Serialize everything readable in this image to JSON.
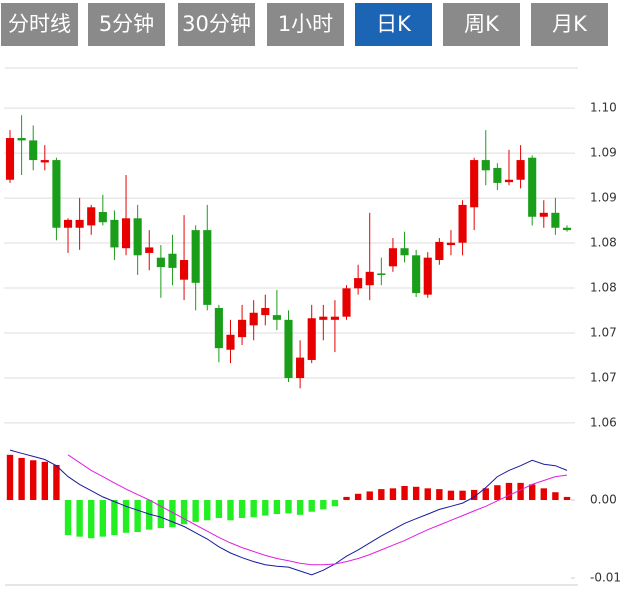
{
  "tabs": {
    "items": [
      "分时线",
      "5分钟",
      "30分钟",
      "1小时",
      "日K",
      "周K",
      "月K"
    ],
    "active": 4
  },
  "chart_data": [
    {
      "type": "candlestick",
      "categories": [
        null,
        null,
        null,
        null,
        null,
        null,
        null,
        null,
        null,
        null,
        null,
        null,
        null,
        null,
        null,
        null,
        null,
        null,
        null,
        null,
        null,
        null,
        null,
        null,
        null,
        null,
        null,
        null,
        null,
        null,
        null,
        null,
        null,
        null,
        null,
        null,
        null,
        null,
        null,
        null,
        null,
        null,
        null,
        null,
        null,
        null,
        null,
        null,
        null
      ],
      "open": [
        1.0909,
        1.0962,
        1.0959,
        1.0931,
        1.0934,
        1.0848,
        1.0848,
        1.0851,
        1.0868,
        1.0858,
        1.0822,
        1.086,
        1.0816,
        1.081,
        1.0815,
        1.0782,
        1.0845,
        1.0845,
        1.0746,
        1.0693,
        1.0709,
        1.0724,
        1.0737,
        1.0737,
        1.0731,
        1.0657,
        1.068,
        1.0731,
        1.0731,
        1.0735,
        1.0771,
        1.0775,
        1.079,
        1.0799,
        1.0822,
        1.0813,
        1.0763,
        1.0807,
        1.0826,
        1.0829,
        1.0874,
        1.0934,
        1.0924,
        1.0906,
        1.0909,
        1.0937,
        1.0862,
        1.0867,
        1.0848
      ],
      "high": [
        1.0972,
        1.0991,
        1.0978,
        1.0953,
        1.0937,
        1.086,
        1.0886,
        1.0877,
        1.089,
        1.087,
        1.0915,
        1.0877,
        1.0845,
        1.0826,
        1.0839,
        1.0864,
        1.0851,
        1.0877,
        1.075,
        1.0731,
        1.075,
        1.0756,
        1.0763,
        1.0769,
        1.0743,
        1.0705,
        1.075,
        1.075,
        1.0756,
        1.0775,
        1.0801,
        1.0867,
        1.081,
        1.0835,
        1.0843,
        1.082,
        1.0817,
        1.0835,
        1.0845,
        1.0883,
        1.0937,
        1.0972,
        1.093,
        1.0947,
        1.0953,
        1.094,
        1.0883,
        1.0886,
        1.0851
      ],
      "low": [
        1.0905,
        1.0915,
        1.0921,
        1.0921,
        1.0832,
        1.0816,
        1.082,
        1.0839,
        1.0851,
        1.0807,
        1.0813,
        1.0788,
        1.0794,
        1.0759,
        1.0775,
        1.0756,
        1.0743,
        1.0743,
        1.0677,
        1.0676,
        1.0699,
        1.0705,
        1.0724,
        1.0718,
        1.0652,
        1.0644,
        1.0676,
        1.0705,
        1.069,
        1.0731,
        1.0763,
        1.0756,
        1.0775,
        1.0792,
        1.0804,
        1.076,
        1.0759,
        1.0801,
        1.0813,
        1.0813,
        1.0845,
        1.0902,
        1.0896,
        1.0902,
        1.0898,
        1.0851,
        1.0848,
        1.0839,
        1.0843
      ],
      "close": [
        1.0962,
        1.0959,
        1.0934,
        1.0934,
        1.0848,
        1.0858,
        1.0858,
        1.0874,
        1.0855,
        1.0823,
        1.086,
        1.0813,
        1.0823,
        1.0798,
        1.0797,
        1.0807,
        1.0778,
        1.075,
        1.0695,
        1.0712,
        1.0731,
        1.074,
        1.0746,
        1.0731,
        1.0657,
        1.0683,
        1.0733,
        1.0735,
        1.0735,
        1.0771,
        1.0784,
        1.0792,
        1.0788,
        1.0822,
        1.0813,
        1.0765,
        1.081,
        1.083,
        1.0829,
        1.0877,
        1.0934,
        1.0921,
        1.0905,
        1.0909,
        1.0934,
        1.0862,
        1.0867,
        1.0848,
        1.0845
      ],
      "up_color": "#e60000",
      "down_color": "#1a9e1a",
      "ylim": [
        1.0591,
        1.1051
      ],
      "yticks": [
        {
          "value": 1.06,
          "label": "1.06"
        },
        {
          "value": 1.065714,
          "label": "1.07"
        },
        {
          "value": 1.071429,
          "label": "1.07"
        },
        {
          "value": 1.077143,
          "label": "1.08"
        },
        {
          "value": 1.082857,
          "label": "1.08"
        },
        {
          "value": 1.088571,
          "label": "1.09"
        },
        {
          "value": 1.094286,
          "label": "1.09"
        },
        {
          "value": 1.1,
          "label": "1.10"
        }
      ],
      "grid": true
    },
    {
      "type": "macd",
      "histogram": [
        0.0058,
        0.0054,
        0.0051,
        0.0049,
        0.0045,
        -0.0045,
        -0.0047,
        -0.0049,
        -0.0047,
        -0.0045,
        -0.0042,
        -0.0041,
        -0.0038,
        -0.0036,
        -0.0035,
        -0.0031,
        -0.0028,
        -0.0026,
        -0.0023,
        -0.0026,
        -0.0023,
        -0.0022,
        -0.002,
        -0.0018,
        -0.0017,
        -0.0019,
        -0.0015,
        -0.0012,
        -0.0008,
        0.0004,
        0.0008,
        0.0011,
        0.0014,
        0.0015,
        0.0018,
        0.0017,
        0.0015,
        0.0014,
        0.0012,
        0.0012,
        0.0013,
        0.0015,
        0.0019,
        0.0022,
        0.0022,
        0.002,
        0.0015,
        0.001,
        0.0004
      ],
      "dif": [
        0.0064,
        0.006,
        0.0056,
        0.0052,
        0.0044,
        0.003,
        0.002,
        0.0012,
        0.0004,
        -0.0002,
        -0.0008,
        -0.0013,
        -0.0018,
        -0.0022,
        -0.0028,
        -0.0034,
        -0.0042,
        -0.005,
        -0.006,
        -0.0068,
        -0.0074,
        -0.0079,
        -0.0083,
        -0.0085,
        -0.0086,
        -0.0091,
        -0.0096,
        -0.009,
        -0.0082,
        -0.0072,
        -0.0064,
        -0.0055,
        -0.0046,
        -0.0038,
        -0.003,
        -0.0024,
        -0.0018,
        -0.0012,
        -0.0008,
        -0.0004,
        0.0004,
        0.0016,
        0.003,
        0.0038,
        0.0044,
        0.0051,
        0.0046,
        0.0044,
        0.0038
      ],
      "dea": [
        null,
        null,
        null,
        null,
        null,
        0.0058,
        0.0048,
        0.0038,
        0.003,
        0.0022,
        0.0014,
        0.0007,
        0.0,
        -0.0008,
        -0.0016,
        -0.0024,
        -0.0032,
        -0.004,
        -0.0048,
        -0.0055,
        -0.0061,
        -0.0066,
        -0.0071,
        -0.0075,
        -0.0078,
        -0.0081,
        -0.0083,
        -0.0083,
        -0.0082,
        -0.0079,
        -0.0075,
        -0.007,
        -0.0064,
        -0.0058,
        -0.0052,
        -0.0045,
        -0.0038,
        -0.0032,
        -0.0026,
        -0.002,
        -0.0014,
        -0.0008,
        -0.0001,
        0.0006,
        0.0013,
        0.002,
        0.0025,
        0.003,
        0.0032
      ],
      "up_color": "#e60000",
      "down_color": "#22ee22",
      "dif_color": "#1a1aa0",
      "dea_color": "#e020e0",
      "ylim": [
        -0.0109,
        0.0077
      ],
      "yticks": [
        {
          "value": 0,
          "label": "0.00"
        },
        {
          "value": -0.01,
          "label": "-0.01"
        }
      ],
      "grid": false
    }
  ]
}
